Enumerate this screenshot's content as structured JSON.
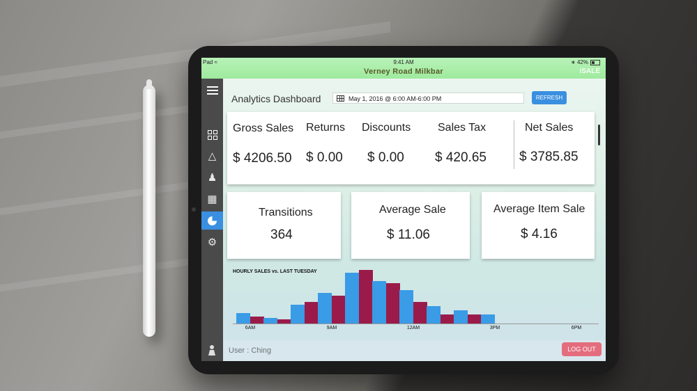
{
  "status": {
    "device": "Pad",
    "time": "9:41 AM",
    "battery": "42%",
    "store_name": "Verney Road Milkbar",
    "brand": "iSALE"
  },
  "sidebar": {
    "items": [
      "menu-icon",
      "grid-icon",
      "bag-icon",
      "person-icon",
      "box-icon",
      "chart-pie-icon",
      "gear-icon"
    ],
    "active": "chart-pie-icon",
    "accent": "#3a8fe0"
  },
  "header": {
    "title": "Analytics Dashboard",
    "date_range": "May 1, 2016 @ 6:00 AM-6:00 PM",
    "refresh_label": "REFRESH"
  },
  "summary": {
    "gross_sales": {
      "label": "Gross Sales",
      "value": "$ 4206.50"
    },
    "returns": {
      "label": "Returns",
      "value": "$ 0.00"
    },
    "discounts": {
      "label": "Discounts",
      "value": "$ 0.00"
    },
    "sales_tax": {
      "label": "Sales Tax",
      "value": "$ 420.65"
    },
    "net_sales": {
      "label": "Net Sales",
      "value": "$ 3785.85"
    }
  },
  "kpis": {
    "transitions": {
      "label": "Transitions",
      "value": "364"
    },
    "average_sale": {
      "label": "Average Sale",
      "value": "$ 11.06"
    },
    "average_item_sale": {
      "label": "Average Item Sale",
      "value": "$ 4.16"
    }
  },
  "chart_data": {
    "type": "bar",
    "title": "HOURLY SALES  vs. LAST TUESDAY",
    "categories": [
      "6AM",
      "7AM",
      "8AM",
      "9AM",
      "10AM",
      "11AM",
      "12AM",
      "1PM",
      "2PM",
      "3PM",
      "4PM",
      "5PM",
      "6PM"
    ],
    "tick_labels": [
      "6AM",
      "9AM",
      "12AM",
      "3PM",
      "6PM"
    ],
    "tick_indices": [
      0,
      3,
      6,
      9,
      12
    ],
    "series": [
      {
        "color": "#3a9be6",
        "values": [
          14,
          8,
          26,
          42,
          70,
          58,
          46,
          24,
          18,
          12,
          0,
          0,
          0
        ]
      },
      {
        "color": "#9a1b4a",
        "values": [
          10,
          6,
          30,
          38,
          73,
          55,
          30,
          12,
          12,
          0,
          0,
          0,
          0
        ]
      }
    ],
    "ylim": [
      0,
      80
    ],
    "grid": false
  },
  "footer": {
    "user_label": "User : Ching",
    "logout_label": "LOG OUT"
  }
}
